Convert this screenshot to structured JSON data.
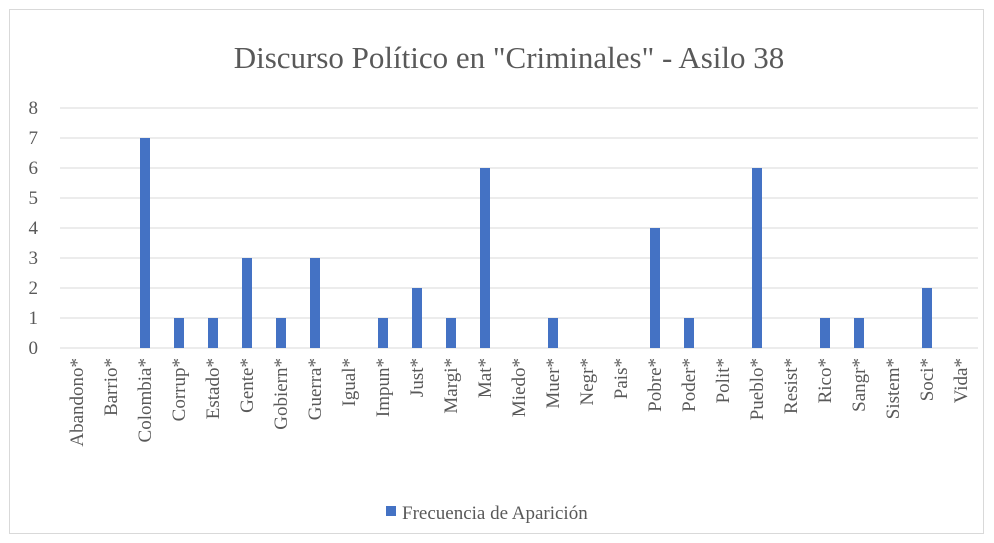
{
  "chart_data": {
    "type": "bar",
    "title": "Discurso Político en \"Criminales\" - Asilo 38",
    "xlabel": "",
    "ylabel": "",
    "ylim": [
      0,
      8
    ],
    "yticks": [
      "0",
      "1",
      "2",
      "3",
      "4",
      "5",
      "6",
      "7",
      "8"
    ],
    "grid": true,
    "legend_position": "bottom",
    "bar_color": "#4472c4",
    "categories": [
      "Abandono*",
      "Barrio*",
      "Colombia*",
      "Corrup*",
      "Estado*",
      "Gente*",
      "Gobiern*",
      "Guerra*",
      "Igual*",
      "Impun*",
      "Just*",
      "Margi*",
      "Mat*",
      "Miedo*",
      "Muer*",
      "Negr*",
      "Pais*",
      "Pobre*",
      "Poder*",
      "Polit*",
      "Pueblo*",
      "Resist*",
      "Rico*",
      "Sangr*",
      "Sistem*",
      "Soci*",
      "Vida*"
    ],
    "series": [
      {
        "name": "Frecuencia de Aparición",
        "values": [
          0,
          0,
          7,
          1,
          1,
          3,
          1,
          3,
          0,
          1,
          2,
          1,
          6,
          0,
          1,
          0,
          0,
          4,
          1,
          0,
          6,
          0,
          1,
          1,
          0,
          2,
          0
        ]
      }
    ]
  }
}
